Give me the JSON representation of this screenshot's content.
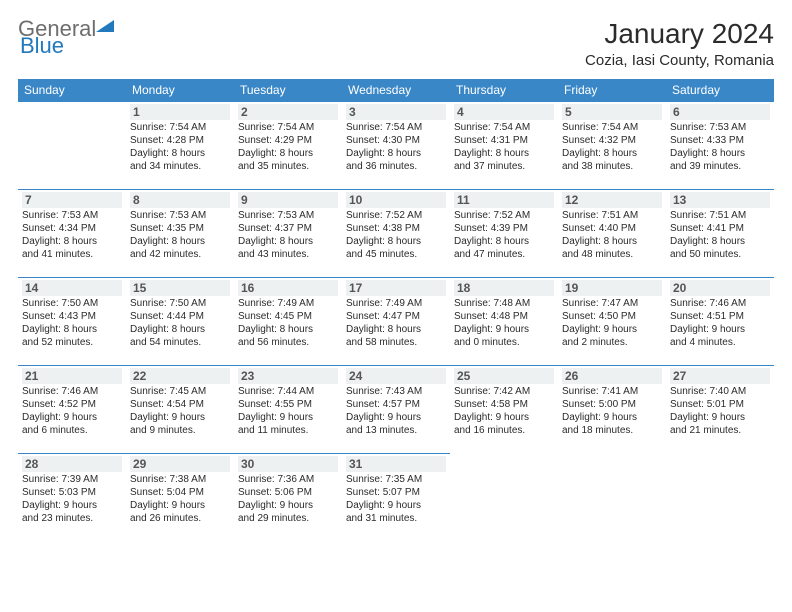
{
  "logo": {
    "word1": "General",
    "word2": "Blue"
  },
  "title": "January 2024",
  "location": "Cozia, Iasi County, Romania",
  "colors": {
    "header_bg": "#3a87c7",
    "header_text": "#ffffff",
    "border": "#3a87c7",
    "daynum_bg": "#eef1f2",
    "logo_gray": "#6e6e6e",
    "logo_blue": "#2279bc"
  },
  "weekdays": [
    "Sunday",
    "Monday",
    "Tuesday",
    "Wednesday",
    "Thursday",
    "Friday",
    "Saturday"
  ],
  "weeks": [
    [
      null,
      {
        "d": "1",
        "sr": "Sunrise: 7:54 AM",
        "ss": "Sunset: 4:28 PM",
        "dl1": "Daylight: 8 hours",
        "dl2": "and 34 minutes."
      },
      {
        "d": "2",
        "sr": "Sunrise: 7:54 AM",
        "ss": "Sunset: 4:29 PM",
        "dl1": "Daylight: 8 hours",
        "dl2": "and 35 minutes."
      },
      {
        "d": "3",
        "sr": "Sunrise: 7:54 AM",
        "ss": "Sunset: 4:30 PM",
        "dl1": "Daylight: 8 hours",
        "dl2": "and 36 minutes."
      },
      {
        "d": "4",
        "sr": "Sunrise: 7:54 AM",
        "ss": "Sunset: 4:31 PM",
        "dl1": "Daylight: 8 hours",
        "dl2": "and 37 minutes."
      },
      {
        "d": "5",
        "sr": "Sunrise: 7:54 AM",
        "ss": "Sunset: 4:32 PM",
        "dl1": "Daylight: 8 hours",
        "dl2": "and 38 minutes."
      },
      {
        "d": "6",
        "sr": "Sunrise: 7:53 AM",
        "ss": "Sunset: 4:33 PM",
        "dl1": "Daylight: 8 hours",
        "dl2": "and 39 minutes."
      }
    ],
    [
      {
        "d": "7",
        "sr": "Sunrise: 7:53 AM",
        "ss": "Sunset: 4:34 PM",
        "dl1": "Daylight: 8 hours",
        "dl2": "and 41 minutes."
      },
      {
        "d": "8",
        "sr": "Sunrise: 7:53 AM",
        "ss": "Sunset: 4:35 PM",
        "dl1": "Daylight: 8 hours",
        "dl2": "and 42 minutes."
      },
      {
        "d": "9",
        "sr": "Sunrise: 7:53 AM",
        "ss": "Sunset: 4:37 PM",
        "dl1": "Daylight: 8 hours",
        "dl2": "and 43 minutes."
      },
      {
        "d": "10",
        "sr": "Sunrise: 7:52 AM",
        "ss": "Sunset: 4:38 PM",
        "dl1": "Daylight: 8 hours",
        "dl2": "and 45 minutes."
      },
      {
        "d": "11",
        "sr": "Sunrise: 7:52 AM",
        "ss": "Sunset: 4:39 PM",
        "dl1": "Daylight: 8 hours",
        "dl2": "and 47 minutes."
      },
      {
        "d": "12",
        "sr": "Sunrise: 7:51 AM",
        "ss": "Sunset: 4:40 PM",
        "dl1": "Daylight: 8 hours",
        "dl2": "and 48 minutes."
      },
      {
        "d": "13",
        "sr": "Sunrise: 7:51 AM",
        "ss": "Sunset: 4:41 PM",
        "dl1": "Daylight: 8 hours",
        "dl2": "and 50 minutes."
      }
    ],
    [
      {
        "d": "14",
        "sr": "Sunrise: 7:50 AM",
        "ss": "Sunset: 4:43 PM",
        "dl1": "Daylight: 8 hours",
        "dl2": "and 52 minutes."
      },
      {
        "d": "15",
        "sr": "Sunrise: 7:50 AM",
        "ss": "Sunset: 4:44 PM",
        "dl1": "Daylight: 8 hours",
        "dl2": "and 54 minutes."
      },
      {
        "d": "16",
        "sr": "Sunrise: 7:49 AM",
        "ss": "Sunset: 4:45 PM",
        "dl1": "Daylight: 8 hours",
        "dl2": "and 56 minutes."
      },
      {
        "d": "17",
        "sr": "Sunrise: 7:49 AM",
        "ss": "Sunset: 4:47 PM",
        "dl1": "Daylight: 8 hours",
        "dl2": "and 58 minutes."
      },
      {
        "d": "18",
        "sr": "Sunrise: 7:48 AM",
        "ss": "Sunset: 4:48 PM",
        "dl1": "Daylight: 9 hours",
        "dl2": "and 0 minutes."
      },
      {
        "d": "19",
        "sr": "Sunrise: 7:47 AM",
        "ss": "Sunset: 4:50 PM",
        "dl1": "Daylight: 9 hours",
        "dl2": "and 2 minutes."
      },
      {
        "d": "20",
        "sr": "Sunrise: 7:46 AM",
        "ss": "Sunset: 4:51 PM",
        "dl1": "Daylight: 9 hours",
        "dl2": "and 4 minutes."
      }
    ],
    [
      {
        "d": "21",
        "sr": "Sunrise: 7:46 AM",
        "ss": "Sunset: 4:52 PM",
        "dl1": "Daylight: 9 hours",
        "dl2": "and 6 minutes."
      },
      {
        "d": "22",
        "sr": "Sunrise: 7:45 AM",
        "ss": "Sunset: 4:54 PM",
        "dl1": "Daylight: 9 hours",
        "dl2": "and 9 minutes."
      },
      {
        "d": "23",
        "sr": "Sunrise: 7:44 AM",
        "ss": "Sunset: 4:55 PM",
        "dl1": "Daylight: 9 hours",
        "dl2": "and 11 minutes."
      },
      {
        "d": "24",
        "sr": "Sunrise: 7:43 AM",
        "ss": "Sunset: 4:57 PM",
        "dl1": "Daylight: 9 hours",
        "dl2": "and 13 minutes."
      },
      {
        "d": "25",
        "sr": "Sunrise: 7:42 AM",
        "ss": "Sunset: 4:58 PM",
        "dl1": "Daylight: 9 hours",
        "dl2": "and 16 minutes."
      },
      {
        "d": "26",
        "sr": "Sunrise: 7:41 AM",
        "ss": "Sunset: 5:00 PM",
        "dl1": "Daylight: 9 hours",
        "dl2": "and 18 minutes."
      },
      {
        "d": "27",
        "sr": "Sunrise: 7:40 AM",
        "ss": "Sunset: 5:01 PM",
        "dl1": "Daylight: 9 hours",
        "dl2": "and 21 minutes."
      }
    ],
    [
      {
        "d": "28",
        "sr": "Sunrise: 7:39 AM",
        "ss": "Sunset: 5:03 PM",
        "dl1": "Daylight: 9 hours",
        "dl2": "and 23 minutes."
      },
      {
        "d": "29",
        "sr": "Sunrise: 7:38 AM",
        "ss": "Sunset: 5:04 PM",
        "dl1": "Daylight: 9 hours",
        "dl2": "and 26 minutes."
      },
      {
        "d": "30",
        "sr": "Sunrise: 7:36 AM",
        "ss": "Sunset: 5:06 PM",
        "dl1": "Daylight: 9 hours",
        "dl2": "and 29 minutes."
      },
      {
        "d": "31",
        "sr": "Sunrise: 7:35 AM",
        "ss": "Sunset: 5:07 PM",
        "dl1": "Daylight: 9 hours",
        "dl2": "and 31 minutes."
      },
      null,
      null,
      null
    ]
  ]
}
